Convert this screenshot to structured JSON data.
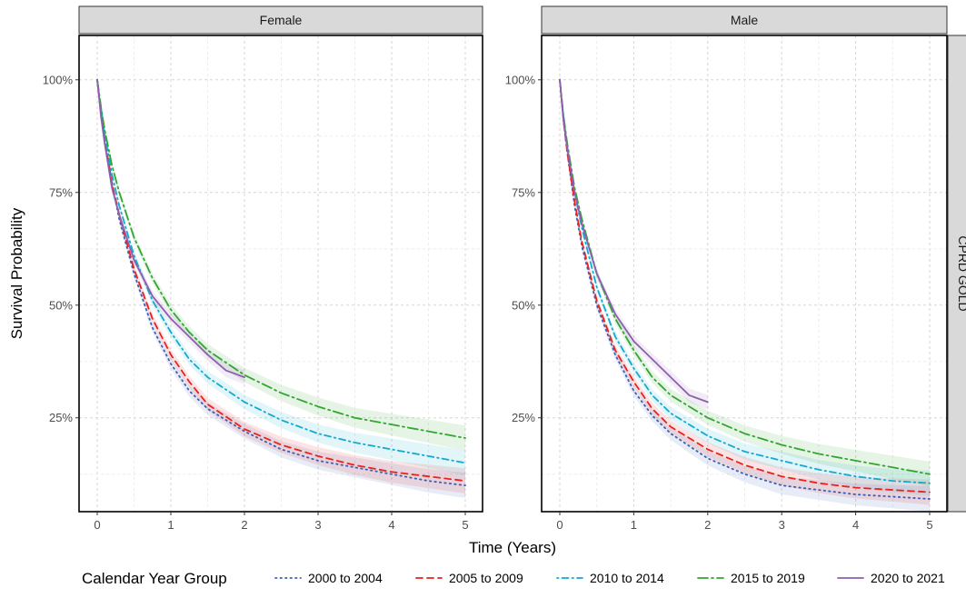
{
  "chart_data": {
    "type": "line",
    "xlabel": "Time (Years)",
    "ylabel": "Survival Probability",
    "xlim": [
      0,
      5
    ],
    "ylim": [
      0.07,
      1.05
    ],
    "x_ticks": [
      0,
      1,
      2,
      3,
      4,
      5
    ],
    "y_ticks": [
      0.25,
      0.5,
      0.75,
      1.0
    ],
    "y_tick_labels": [
      "25%",
      "50%",
      "75%",
      "100%"
    ],
    "grid": true,
    "row_strip": "CPRD GOLD",
    "legend": {
      "title": "Calendar Year Group",
      "position": "bottom",
      "entries": [
        "2000 to 2004",
        "2005 to 2009",
        "2010 to 2014",
        "2015 to 2019",
        "2020 to 2021"
      ]
    },
    "series_styles": [
      {
        "name": "2000 to 2004",
        "color": "#3B5FB5",
        "dash": "dotted"
      },
      {
        "name": "2005 to 2009",
        "color": "#E8221E",
        "dash": "dashed"
      },
      {
        "name": "2010 to 2014",
        "color": "#14A9CF",
        "dash": "dotdash"
      },
      {
        "name": "2015 to 2019",
        "color": "#32A631",
        "dash": "longdash"
      },
      {
        "name": "2020 to 2021",
        "color": "#8E5FAE",
        "dash": "solid"
      }
    ],
    "panels": [
      {
        "title": "Female",
        "series": [
          {
            "name": "2000 to 2004",
            "x": [
              0,
              0.05,
              0.1,
              0.2,
              0.3,
              0.5,
              0.75,
              1,
              1.25,
              1.5,
              2,
              2.5,
              3,
              3.5,
              4,
              4.5,
              5
            ],
            "y": [
              1.0,
              0.93,
              0.87,
              0.77,
              0.69,
              0.57,
              0.45,
              0.37,
              0.31,
              0.27,
              0.22,
              0.18,
              0.155,
              0.14,
              0.125,
              0.11,
              0.1
            ]
          },
          {
            "name": "2005 to 2009",
            "x": [
              0,
              0.05,
              0.1,
              0.2,
              0.3,
              0.5,
              0.75,
              1,
              1.25,
              1.5,
              2,
              2.5,
              3,
              3.5,
              4,
              4.5,
              5
            ],
            "y": [
              1.0,
              0.93,
              0.87,
              0.77,
              0.7,
              0.58,
              0.47,
              0.39,
              0.33,
              0.28,
              0.225,
              0.19,
              0.165,
              0.145,
              0.13,
              0.12,
              0.11
            ]
          },
          {
            "name": "2010 to 2014",
            "x": [
              0,
              0.05,
              0.1,
              0.2,
              0.3,
              0.5,
              0.75,
              1,
              1.25,
              1.5,
              2,
              2.5,
              3,
              3.5,
              4,
              4.5,
              5
            ],
            "y": [
              1.0,
              0.94,
              0.88,
              0.79,
              0.72,
              0.61,
              0.51,
              0.44,
              0.38,
              0.34,
              0.285,
              0.245,
              0.215,
              0.195,
              0.18,
              0.165,
              0.15
            ]
          },
          {
            "name": "2015 to 2019",
            "x": [
              0,
              0.05,
              0.1,
              0.2,
              0.3,
              0.5,
              0.75,
              1,
              1.25,
              1.5,
              2,
              2.5,
              3,
              3.5,
              4,
              4.5,
              5
            ],
            "y": [
              1.0,
              0.94,
              0.89,
              0.81,
              0.75,
              0.65,
              0.56,
              0.49,
              0.44,
              0.4,
              0.345,
              0.305,
              0.275,
              0.25,
              0.235,
              0.22,
              0.205
            ]
          },
          {
            "name": "2020 to 2021",
            "x": [
              0,
              0.05,
              0.1,
              0.2,
              0.3,
              0.5,
              0.75,
              1,
              1.25,
              1.5,
              1.75,
              2
            ],
            "y": [
              1.0,
              0.92,
              0.86,
              0.76,
              0.7,
              0.6,
              0.52,
              0.47,
              0.43,
              0.39,
              0.355,
              0.34
            ]
          }
        ]
      },
      {
        "title": "Male",
        "series": [
          {
            "name": "2000 to 2004",
            "x": [
              0,
              0.05,
              0.1,
              0.2,
              0.3,
              0.5,
              0.75,
              1,
              1.25,
              1.5,
              2,
              2.5,
              3,
              3.5,
              4,
              4.5,
              5
            ],
            "y": [
              1.0,
              0.91,
              0.84,
              0.72,
              0.63,
              0.5,
              0.39,
              0.31,
              0.255,
              0.215,
              0.16,
              0.125,
              0.1,
              0.09,
              0.08,
              0.075,
              0.07
            ]
          },
          {
            "name": "2005 to 2009",
            "x": [
              0,
              0.05,
              0.1,
              0.2,
              0.3,
              0.5,
              0.75,
              1,
              1.25,
              1.5,
              2,
              2.5,
              3,
              3.5,
              4,
              4.5,
              5
            ],
            "y": [
              1.0,
              0.91,
              0.84,
              0.73,
              0.64,
              0.51,
              0.4,
              0.33,
              0.27,
              0.23,
              0.18,
              0.145,
              0.12,
              0.105,
              0.095,
              0.09,
              0.085
            ]
          },
          {
            "name": "2010 to 2014",
            "x": [
              0,
              0.05,
              0.1,
              0.2,
              0.3,
              0.5,
              0.75,
              1,
              1.25,
              1.5,
              2,
              2.5,
              3,
              3.5,
              4,
              4.5,
              5
            ],
            "y": [
              1.0,
              0.92,
              0.85,
              0.75,
              0.67,
              0.54,
              0.43,
              0.36,
              0.3,
              0.26,
              0.21,
              0.175,
              0.155,
              0.135,
              0.12,
              0.11,
              0.105
            ]
          },
          {
            "name": "2015 to 2019",
            "x": [
              0,
              0.05,
              0.1,
              0.2,
              0.3,
              0.5,
              0.75,
              1,
              1.25,
              1.5,
              2,
              2.5,
              3,
              3.5,
              4,
              4.5,
              5
            ],
            "y": [
              1.0,
              0.92,
              0.86,
              0.76,
              0.69,
              0.57,
              0.47,
              0.4,
              0.34,
              0.3,
              0.25,
              0.215,
              0.19,
              0.17,
              0.155,
              0.14,
              0.125
            ]
          },
          {
            "name": "2020 to 2021",
            "x": [
              0,
              0.05,
              0.1,
              0.2,
              0.3,
              0.5,
              0.75,
              1,
              1.25,
              1.5,
              1.75,
              2
            ],
            "y": [
              1.0,
              0.91,
              0.85,
              0.75,
              0.68,
              0.57,
              0.48,
              0.42,
              0.38,
              0.34,
              0.3,
              0.285
            ]
          }
        ]
      }
    ]
  }
}
